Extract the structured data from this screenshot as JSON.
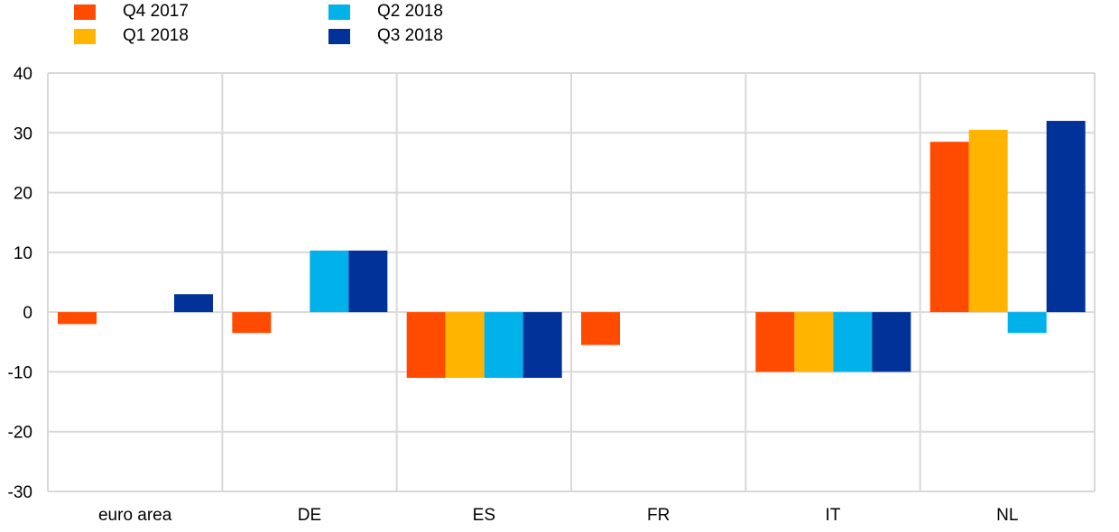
{
  "chart_data": {
    "type": "bar",
    "categories": [
      "euro area",
      "DE",
      "ES",
      "FR",
      "IT",
      "NL"
    ],
    "series": [
      {
        "name": "Q4 2017",
        "color": "#ff4b00",
        "values": [
          -2,
          -3.5,
          -11,
          -5.5,
          -10,
          28.5
        ]
      },
      {
        "name": "Q1 2018",
        "color": "#ffb400",
        "values": [
          0,
          0,
          -11,
          0,
          -10,
          30.5
        ]
      },
      {
        "name": "Q2 2018",
        "color": "#00b1ea",
        "values": [
          0,
          10.3,
          -11,
          0,
          -10,
          -3.5
        ]
      },
      {
        "name": "Q3 2018",
        "color": "#003299",
        "values": [
          3,
          10.3,
          -11,
          0,
          -10,
          32
        ]
      }
    ],
    "ylim": [
      -30,
      40
    ],
    "yticks": [
      40,
      30,
      20,
      10,
      0,
      -10,
      -20,
      -30
    ],
    "title": "",
    "xlabel": "",
    "ylabel": "",
    "grid": true,
    "legend_position": "top-left"
  }
}
